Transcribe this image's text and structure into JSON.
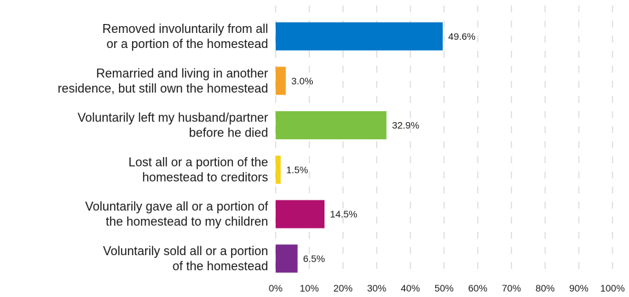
{
  "chart_data": {
    "type": "bar",
    "orientation": "horizontal",
    "categories": [
      [
        "Removed involuntarily from all",
        "or a portion of the homestead"
      ],
      [
        "Remarried and living in another",
        "residence, but still own the homestead"
      ],
      [
        "Voluntarily left my husband/partner",
        "before he died"
      ],
      [
        "Lost all or a portion of the",
        "homestead to creditors"
      ],
      [
        "Voluntarily gave all or a portion of",
        "the homestead to my children"
      ],
      [
        "Voluntarily sold all or a portion",
        "of the homestead"
      ]
    ],
    "values": [
      49.6,
      3.0,
      32.9,
      1.5,
      14.5,
      6.5
    ],
    "value_labels": [
      "49.6%",
      "3.0%",
      "32.9%",
      "1.5%",
      "14.5%",
      "6.5%"
    ],
    "colors": [
      "#0077c8",
      "#f4a12a",
      "#7dc142",
      "#f3d21a",
      "#b1106e",
      "#7a2a8c"
    ],
    "xlim": [
      0,
      100
    ],
    "xticks": [
      "0%",
      "10%",
      "20%",
      "30%",
      "40%",
      "50%",
      "60%",
      "70%",
      "80%",
      "90%",
      "100%"
    ],
    "grid": true,
    "legend": "none"
  }
}
